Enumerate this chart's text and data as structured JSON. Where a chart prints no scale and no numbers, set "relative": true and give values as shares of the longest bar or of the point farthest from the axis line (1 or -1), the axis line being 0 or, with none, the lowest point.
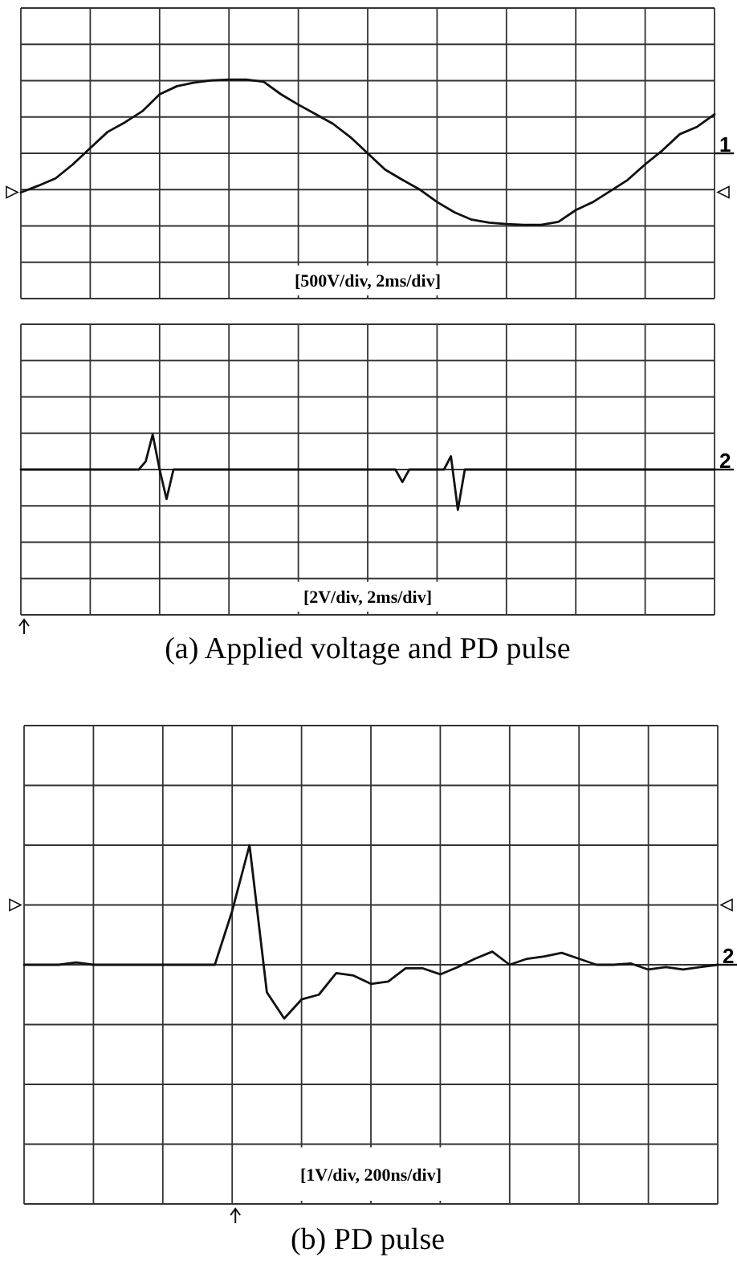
{
  "chart_data": [
    {
      "type": "line",
      "relative": true,
      "grid": true,
      "categories": [
        null,
        null,
        null,
        null,
        null,
        null,
        null,
        null,
        null,
        null,
        null,
        null,
        null,
        null,
        null,
        null,
        null,
        null,
        null,
        null,
        null,
        null,
        null,
        null,
        null,
        null,
        null,
        null,
        null,
        null,
        null,
        null,
        null,
        null,
        null,
        null,
        null,
        null,
        null,
        null,
        null
      ],
      "series": [
        {
          "color": "#111111",
          "values": [
            -0.53,
            -0.44,
            -0.34,
            -0.15,
            0.07,
            0.29,
            0.42,
            0.57,
            0.8,
            0.91,
            0.96,
            0.99,
            1,
            1,
            0.97,
            0.8,
            0.66,
            0.53,
            0.4,
            0.22,
            0,
            -0.22,
            -0.36,
            -0.49,
            -0.66,
            -0.8,
            -0.9,
            -0.94,
            -0.96,
            -0.97,
            -0.97,
            -0.93,
            -0.77,
            -0.66,
            -0.51,
            -0.36,
            -0.15,
            0.04,
            0.26,
            0.36,
            0.53
          ]
        }
      ],
      "annotations": [
        "[500V/div, 2ms/div]",
        "1"
      ]
    },
    {
      "type": "line",
      "relative": true,
      "grid": true,
      "categories": [
        null,
        null,
        null,
        null,
        null,
        null,
        null,
        null,
        null,
        null,
        null,
        null,
        null,
        null,
        null,
        null,
        null,
        null,
        null,
        null,
        null,
        null,
        null,
        null,
        null,
        null,
        null,
        null,
        null,
        null,
        null,
        null,
        null,
        null,
        null,
        null,
        null,
        null,
        null,
        null,
        null,
        null,
        null,
        null,
        null,
        null,
        null,
        null,
        null,
        null,
        null,
        null,
        null,
        null,
        null,
        null,
        null,
        null,
        null,
        null,
        null,
        null,
        null,
        null,
        null,
        null,
        null,
        null,
        null,
        null,
        null,
        null,
        null,
        null,
        null,
        null,
        null,
        null,
        null,
        null,
        null,
        null,
        null,
        null,
        null,
        null,
        null,
        null,
        null,
        null,
        null,
        null,
        null,
        null,
        null,
        null,
        null,
        null,
        null,
        null,
        null
      ],
      "series": [
        {
          "color": "#111111",
          "values": [
            0,
            0,
            0,
            0,
            0,
            0,
            0,
            0,
            0,
            0,
            0,
            0,
            0,
            0,
            0,
            0,
            0,
            0,
            0.2,
            0.87,
            0,
            -0.73,
            0,
            0,
            0,
            0,
            0,
            0,
            0,
            0,
            0,
            0,
            0,
            0,
            0,
            0,
            0,
            0,
            0,
            0,
            0,
            0,
            0,
            0,
            0,
            0,
            0,
            0,
            0,
            0,
            0,
            0,
            0,
            0,
            0,
            -0.31,
            0,
            0,
            0,
            0,
            0,
            0,
            0.33,
            -1,
            0,
            0,
            0,
            0,
            0,
            0,
            0,
            0,
            0,
            0,
            0,
            0,
            0,
            0,
            0,
            0,
            0,
            0,
            0,
            0,
            0,
            0,
            0,
            0,
            0,
            0,
            0,
            0,
            0,
            0,
            0,
            0,
            0,
            0,
            0,
            0,
            0
          ]
        }
      ],
      "annotations": [
        "[2V/div, 2ms/div]",
        "2",
        "(a)  Applied  voltage  and  PD  pulse"
      ]
    },
    {
      "type": "line",
      "relative": true,
      "grid": true,
      "categories": [
        null,
        null,
        null,
        null,
        null,
        null,
        null,
        null,
        null,
        null,
        null,
        null,
        null,
        null,
        null,
        null,
        null,
        null,
        null,
        null,
        null,
        null,
        null,
        null,
        null,
        null,
        null,
        null,
        null,
        null,
        null,
        null,
        null,
        null,
        null,
        null,
        null,
        null,
        null,
        null,
        null
      ],
      "series": [
        {
          "color": "#111111",
          "values": [
            0,
            0,
            0,
            0.02,
            0,
            0,
            0,
            0,
            0,
            0,
            0,
            0,
            0.45,
            1,
            -0.23,
            -0.45,
            -0.29,
            -0.25,
            -0.07,
            -0.09,
            -0.16,
            -0.14,
            -0.03,
            -0.03,
            -0.08,
            -0.02,
            0.05,
            0.11,
            0,
            0.05,
            0.07,
            0.1,
            0.05,
            0,
            0,
            0.01,
            -0.04,
            -0.02,
            -0.04,
            -0.02,
            0
          ]
        }
      ],
      "annotations": [
        "[1V/div, 200ns/div]",
        "2",
        "(b)  PD  pulse"
      ]
    }
  ]
}
